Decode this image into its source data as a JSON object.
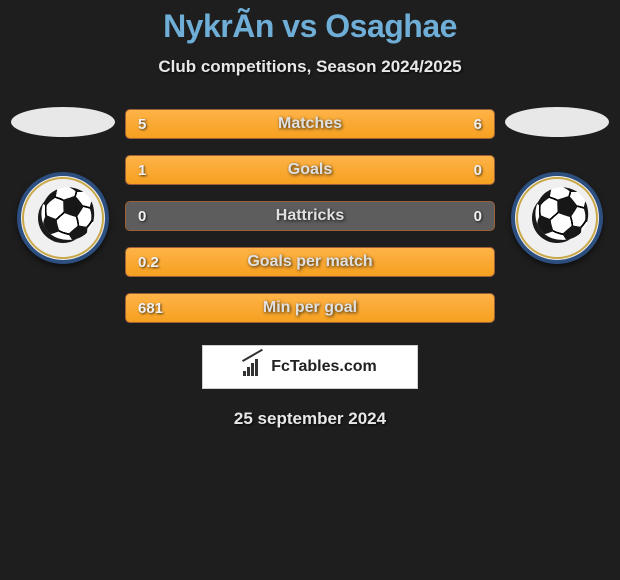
{
  "title": "NykrÃn vs Osaghae",
  "subtitle": "Club competitions, Season 2024/2025",
  "date": "25 september 2024",
  "logo_text": "FcTables.com",
  "colors": {
    "background": "#1e1e1e",
    "title_color": "#6faed6",
    "text_color": "#e8e8e8",
    "bar_fill": "#f5a020",
    "bar_bg": "#5d5d5d",
    "badge_border": "#2c4f80",
    "badge_ring": "#c9a84a",
    "logo_bg": "#ffffff"
  },
  "bars": [
    {
      "label": "Matches",
      "left_val": "5",
      "right_val": "6",
      "left_pct": 45,
      "right_pct": 55
    },
    {
      "label": "Goals",
      "left_val": "1",
      "right_val": "0",
      "left_pct": 70,
      "right_pct": 30
    },
    {
      "label": "Hattricks",
      "left_val": "0",
      "right_val": "0",
      "left_pct": 0,
      "right_pct": 0
    },
    {
      "label": "Goals per match",
      "left_val": "0.2",
      "right_val": "",
      "left_pct": 100,
      "right_pct": 0
    },
    {
      "label": "Min per goal",
      "left_val": "681",
      "right_val": "",
      "left_pct": 100,
      "right_pct": 0
    }
  ]
}
